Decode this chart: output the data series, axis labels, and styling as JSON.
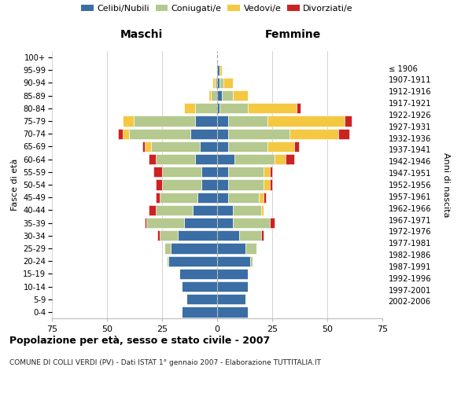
{
  "age_groups": [
    "100+",
    "95-99",
    "90-94",
    "85-89",
    "80-84",
    "75-79",
    "70-74",
    "65-69",
    "60-64",
    "55-59",
    "50-54",
    "45-49",
    "40-44",
    "35-39",
    "30-34",
    "25-29",
    "20-24",
    "15-19",
    "10-14",
    "5-9",
    "0-4"
  ],
  "birth_years": [
    "≤ 1906",
    "1907-1911",
    "1912-1916",
    "1917-1921",
    "1922-1926",
    "1927-1931",
    "1932-1936",
    "1937-1941",
    "1942-1946",
    "1947-1951",
    "1952-1956",
    "1957-1961",
    "1962-1966",
    "1967-1971",
    "1972-1976",
    "1977-1981",
    "1982-1986",
    "1987-1991",
    "1992-1996",
    "1997-2001",
    "2002-2006"
  ],
  "colors": {
    "celibi": "#3a6ea5",
    "coniugati": "#b5c98e",
    "vedovi": "#f5c842",
    "divorziati": "#cc2222"
  },
  "males": {
    "celibi": [
      0,
      0,
      0,
      0,
      0,
      10,
      12,
      8,
      10,
      7,
      7,
      9,
      11,
      15,
      18,
      21,
      22,
      17,
      16,
      14,
      16
    ],
    "coniugati": [
      0,
      0,
      1,
      3,
      10,
      28,
      28,
      22,
      18,
      18,
      18,
      17,
      17,
      17,
      8,
      3,
      1,
      0,
      0,
      0,
      0
    ],
    "vedovi": [
      0,
      0,
      1,
      1,
      5,
      5,
      3,
      3,
      0,
      0,
      0,
      0,
      0,
      0,
      0,
      0,
      0,
      0,
      0,
      0,
      0
    ],
    "divorziati": [
      0,
      0,
      0,
      0,
      0,
      0,
      2,
      1,
      3,
      4,
      3,
      2,
      3,
      1,
      1,
      0,
      0,
      0,
      0,
      0,
      0
    ]
  },
  "females": {
    "nubili": [
      0,
      1,
      1,
      2,
      1,
      5,
      5,
      5,
      8,
      5,
      5,
      5,
      7,
      7,
      10,
      13,
      15,
      14,
      14,
      13,
      14
    ],
    "coniugate": [
      0,
      0,
      2,
      5,
      13,
      18,
      28,
      18,
      18,
      16,
      16,
      14,
      13,
      17,
      10,
      5,
      1,
      0,
      0,
      0,
      0
    ],
    "vedove": [
      0,
      1,
      4,
      7,
      22,
      35,
      22,
      12,
      5,
      3,
      3,
      2,
      1,
      0,
      0,
      0,
      0,
      0,
      0,
      0,
      0
    ],
    "divorziate": [
      0,
      0,
      0,
      0,
      2,
      3,
      5,
      2,
      4,
      1,
      1,
      1,
      0,
      2,
      1,
      0,
      0,
      0,
      0,
      0,
      0
    ]
  },
  "xlim": 75,
  "title": "Popolazione per età, sesso e stato civile - 2007",
  "subtitle": "COMUNE DI COLLI VERDI (PV) - Dati ISTAT 1° gennaio 2007 - Elaborazione TUTTITALIA.IT",
  "ylabel_left": "Fasce di età",
  "ylabel_right": "Anni di nascita",
  "header_maschi": "Maschi",
  "header_femmine": "Femmine",
  "legend_labels": [
    "Celibi/Nubili",
    "Coniugati/e",
    "Vedovi/e",
    "Divorziati/e"
  ],
  "legend_color_keys": [
    "celibi",
    "coniugati",
    "vedovi",
    "divorziati"
  ],
  "xtick_vals": [
    -75,
    -50,
    -25,
    0,
    25,
    50,
    75
  ],
  "xtick_labels": [
    "75",
    "50",
    "25",
    "0",
    "25",
    "50",
    "75"
  ]
}
